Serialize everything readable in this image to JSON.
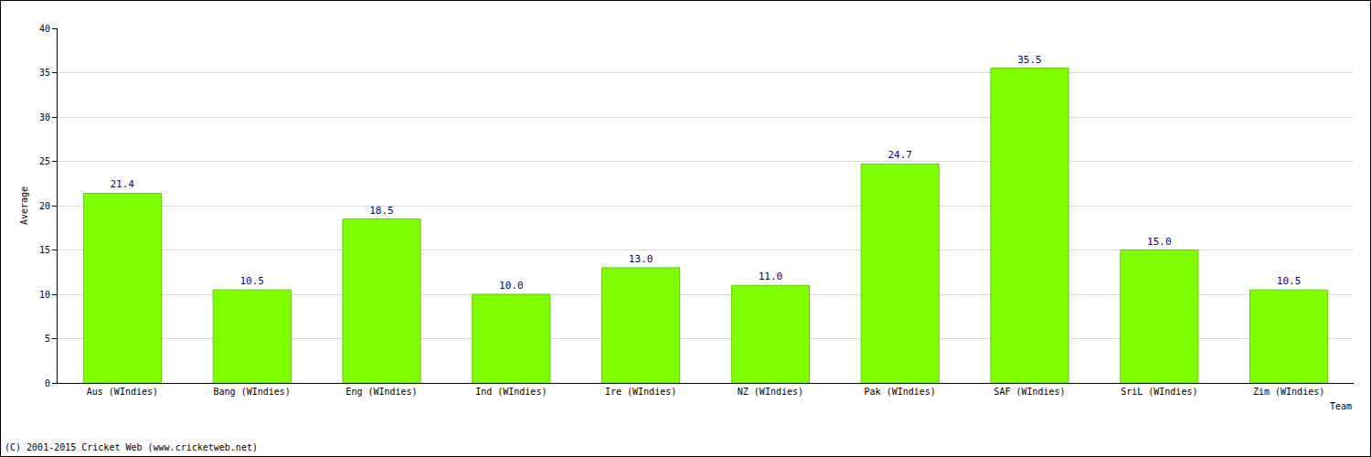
{
  "chart_data": {
    "type": "bar",
    "categories": [
      "Aus (WIndies)",
      "Bang (WIndies)",
      "Eng (WIndies)",
      "Ind (WIndies)",
      "Ire (WIndies)",
      "NZ (WIndies)",
      "Pak (WIndies)",
      "SAF (WIndies)",
      "SriL (WIndies)",
      "Zim (WIndies)"
    ],
    "values": [
      21.4,
      10.5,
      18.5,
      10.0,
      13.0,
      11.0,
      24.7,
      35.5,
      15.0,
      10.5
    ],
    "value_labels": [
      "21.4",
      "10.5",
      "18.5",
      "10.0",
      "13.0",
      "11.0",
      "24.7",
      "35.5",
      "15.0",
      "10.5"
    ],
    "data_labels": true,
    "color": "#80ff00",
    "x_label": "Team",
    "y_label": "Average",
    "ylim": [
      0,
      40
    ],
    "yticks": [
      0,
      5,
      10,
      15,
      20,
      25,
      30,
      35,
      40
    ],
    "grid": true,
    "annotations": [
      "(C) 2001-2015 Cricket Web (www.cricketweb.net)"
    ]
  }
}
